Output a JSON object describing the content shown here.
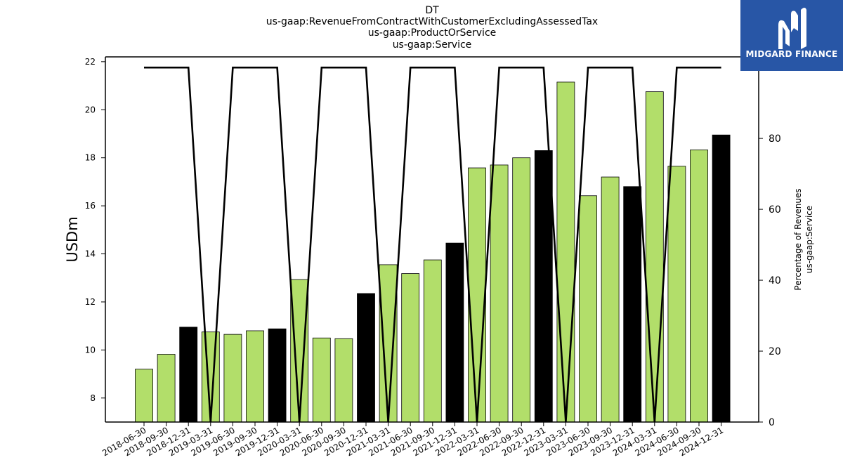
{
  "brand": {
    "name": "MIDGARD FINANCE",
    "logo_icon": "midgard-finance-logo-icon",
    "background_color": "#2856a6"
  },
  "chart_data": {
    "type": "bar",
    "title_lines": [
      "DT",
      "us-gaap:RevenueFromContractWithCustomerExcludingAssessedTax",
      "us-gaap:ProductOrService",
      "us-gaap:Service"
    ],
    "ylabel": "USDm",
    "y2label_lines": [
      "Percentage of Revenues",
      "us-gaap:Service"
    ],
    "ylim": [
      7,
      22.2
    ],
    "y2lim": [
      0,
      103
    ],
    "yticks": [
      8,
      10,
      12,
      14,
      16,
      18,
      20,
      22
    ],
    "y2ticks": [
      0,
      20,
      40,
      60,
      80,
      100
    ],
    "categories": [
      "2018-06-30",
      "2018-09-30",
      "2018-12-31",
      "2019-03-31",
      "2019-06-30",
      "2019-09-30",
      "2019-12-31",
      "2020-03-31",
      "2020-06-30",
      "2020-09-30",
      "2020-12-31",
      "2021-03-31",
      "2021-06-30",
      "2021-09-30",
      "2021-12-31",
      "2022-03-31",
      "2022-06-30",
      "2022-09-30",
      "2022-12-31",
      "2023-03-31",
      "2023-06-30",
      "2023-09-30",
      "2023-12-31",
      "2024-03-31",
      "2024-06-30",
      "2024-09-30",
      "2024-12-31"
    ],
    "series": [
      {
        "type": "bar",
        "values": [
          9.2,
          9.82,
          10.95,
          10.75,
          10.65,
          10.8,
          10.88,
          12.93,
          10.5,
          10.47,
          12.35,
          13.55,
          13.18,
          13.75,
          14.45,
          17.58,
          17.7,
          18.0,
          18.3,
          21.15,
          16.42,
          17.2,
          16.8,
          20.75,
          17.65,
          18.33,
          18.95
        ],
        "colors": {
          "quarter": "#b2de6a",
          "year_end": "#000000"
        },
        "year_end_flags": [
          0,
          0,
          1,
          0,
          0,
          0,
          1,
          0,
          0,
          0,
          1,
          0,
          0,
          0,
          1,
          0,
          0,
          0,
          1,
          0,
          0,
          0,
          1,
          0,
          0,
          0,
          1
        ]
      },
      {
        "type": "line",
        "axis": "right",
        "color": "#000000",
        "values": [
          100,
          100,
          100,
          0,
          100,
          100,
          100,
          0,
          100,
          100,
          100,
          0,
          100,
          100,
          100,
          0,
          100,
          100,
          100,
          0,
          100,
          100,
          100,
          0,
          100,
          100,
          100
        ]
      }
    ],
    "grid": false
  }
}
